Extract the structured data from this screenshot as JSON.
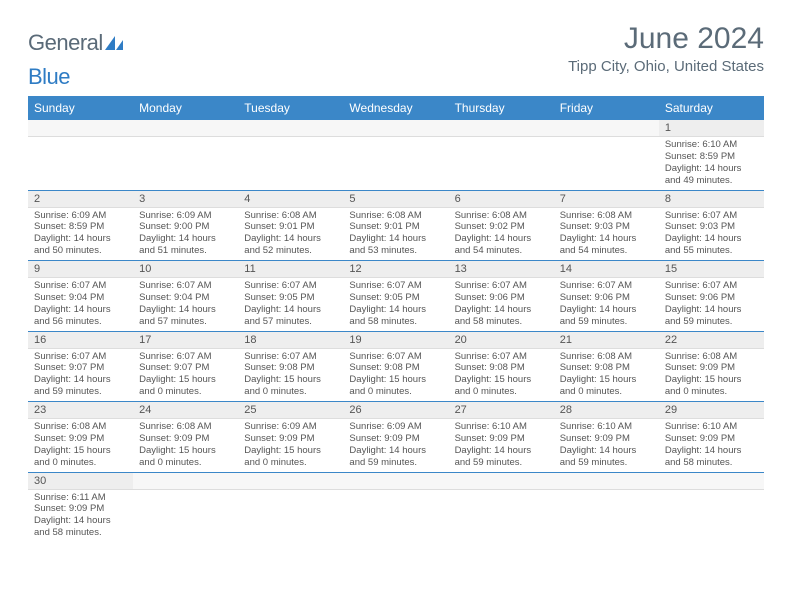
{
  "brand": {
    "prefix": "General",
    "accent": "Blue"
  },
  "title": "June 2024",
  "location": "Tipp City, Ohio, United States",
  "colors": {
    "header_bg": "#3b87c8",
    "header_text": "#ffffff",
    "daynum_bg": "#eeeeee",
    "border_accent": "#3b87c8",
    "text": "#555555",
    "title_color": "#5b6b78"
  },
  "weekdays": [
    "Sunday",
    "Monday",
    "Tuesday",
    "Wednesday",
    "Thursday",
    "Friday",
    "Saturday"
  ],
  "weeks": [
    [
      null,
      null,
      null,
      null,
      null,
      null,
      {
        "n": "1",
        "sr": "Sunrise: 6:10 AM",
        "ss": "Sunset: 8:59 PM",
        "d1": "Daylight: 14 hours",
        "d2": "and 49 minutes."
      }
    ],
    [
      {
        "n": "2",
        "sr": "Sunrise: 6:09 AM",
        "ss": "Sunset: 8:59 PM",
        "d1": "Daylight: 14 hours",
        "d2": "and 50 minutes."
      },
      {
        "n": "3",
        "sr": "Sunrise: 6:09 AM",
        "ss": "Sunset: 9:00 PM",
        "d1": "Daylight: 14 hours",
        "d2": "and 51 minutes."
      },
      {
        "n": "4",
        "sr": "Sunrise: 6:08 AM",
        "ss": "Sunset: 9:01 PM",
        "d1": "Daylight: 14 hours",
        "d2": "and 52 minutes."
      },
      {
        "n": "5",
        "sr": "Sunrise: 6:08 AM",
        "ss": "Sunset: 9:01 PM",
        "d1": "Daylight: 14 hours",
        "d2": "and 53 minutes."
      },
      {
        "n": "6",
        "sr": "Sunrise: 6:08 AM",
        "ss": "Sunset: 9:02 PM",
        "d1": "Daylight: 14 hours",
        "d2": "and 54 minutes."
      },
      {
        "n": "7",
        "sr": "Sunrise: 6:08 AM",
        "ss": "Sunset: 9:03 PM",
        "d1": "Daylight: 14 hours",
        "d2": "and 54 minutes."
      },
      {
        "n": "8",
        "sr": "Sunrise: 6:07 AM",
        "ss": "Sunset: 9:03 PM",
        "d1": "Daylight: 14 hours",
        "d2": "and 55 minutes."
      }
    ],
    [
      {
        "n": "9",
        "sr": "Sunrise: 6:07 AM",
        "ss": "Sunset: 9:04 PM",
        "d1": "Daylight: 14 hours",
        "d2": "and 56 minutes."
      },
      {
        "n": "10",
        "sr": "Sunrise: 6:07 AM",
        "ss": "Sunset: 9:04 PM",
        "d1": "Daylight: 14 hours",
        "d2": "and 57 minutes."
      },
      {
        "n": "11",
        "sr": "Sunrise: 6:07 AM",
        "ss": "Sunset: 9:05 PM",
        "d1": "Daylight: 14 hours",
        "d2": "and 57 minutes."
      },
      {
        "n": "12",
        "sr": "Sunrise: 6:07 AM",
        "ss": "Sunset: 9:05 PM",
        "d1": "Daylight: 14 hours",
        "d2": "and 58 minutes."
      },
      {
        "n": "13",
        "sr": "Sunrise: 6:07 AM",
        "ss": "Sunset: 9:06 PM",
        "d1": "Daylight: 14 hours",
        "d2": "and 58 minutes."
      },
      {
        "n": "14",
        "sr": "Sunrise: 6:07 AM",
        "ss": "Sunset: 9:06 PM",
        "d1": "Daylight: 14 hours",
        "d2": "and 59 minutes."
      },
      {
        "n": "15",
        "sr": "Sunrise: 6:07 AM",
        "ss": "Sunset: 9:06 PM",
        "d1": "Daylight: 14 hours",
        "d2": "and 59 minutes."
      }
    ],
    [
      {
        "n": "16",
        "sr": "Sunrise: 6:07 AM",
        "ss": "Sunset: 9:07 PM",
        "d1": "Daylight: 14 hours",
        "d2": "and 59 minutes."
      },
      {
        "n": "17",
        "sr": "Sunrise: 6:07 AM",
        "ss": "Sunset: 9:07 PM",
        "d1": "Daylight: 15 hours",
        "d2": "and 0 minutes."
      },
      {
        "n": "18",
        "sr": "Sunrise: 6:07 AM",
        "ss": "Sunset: 9:08 PM",
        "d1": "Daylight: 15 hours",
        "d2": "and 0 minutes."
      },
      {
        "n": "19",
        "sr": "Sunrise: 6:07 AM",
        "ss": "Sunset: 9:08 PM",
        "d1": "Daylight: 15 hours",
        "d2": "and 0 minutes."
      },
      {
        "n": "20",
        "sr": "Sunrise: 6:07 AM",
        "ss": "Sunset: 9:08 PM",
        "d1": "Daylight: 15 hours",
        "d2": "and 0 minutes."
      },
      {
        "n": "21",
        "sr": "Sunrise: 6:08 AM",
        "ss": "Sunset: 9:08 PM",
        "d1": "Daylight: 15 hours",
        "d2": "and 0 minutes."
      },
      {
        "n": "22",
        "sr": "Sunrise: 6:08 AM",
        "ss": "Sunset: 9:09 PM",
        "d1": "Daylight: 15 hours",
        "d2": "and 0 minutes."
      }
    ],
    [
      {
        "n": "23",
        "sr": "Sunrise: 6:08 AM",
        "ss": "Sunset: 9:09 PM",
        "d1": "Daylight: 15 hours",
        "d2": "and 0 minutes."
      },
      {
        "n": "24",
        "sr": "Sunrise: 6:08 AM",
        "ss": "Sunset: 9:09 PM",
        "d1": "Daylight: 15 hours",
        "d2": "and 0 minutes."
      },
      {
        "n": "25",
        "sr": "Sunrise: 6:09 AM",
        "ss": "Sunset: 9:09 PM",
        "d1": "Daylight: 15 hours",
        "d2": "and 0 minutes."
      },
      {
        "n": "26",
        "sr": "Sunrise: 6:09 AM",
        "ss": "Sunset: 9:09 PM",
        "d1": "Daylight: 14 hours",
        "d2": "and 59 minutes."
      },
      {
        "n": "27",
        "sr": "Sunrise: 6:10 AM",
        "ss": "Sunset: 9:09 PM",
        "d1": "Daylight: 14 hours",
        "d2": "and 59 minutes."
      },
      {
        "n": "28",
        "sr": "Sunrise: 6:10 AM",
        "ss": "Sunset: 9:09 PM",
        "d1": "Daylight: 14 hours",
        "d2": "and 59 minutes."
      },
      {
        "n": "29",
        "sr": "Sunrise: 6:10 AM",
        "ss": "Sunset: 9:09 PM",
        "d1": "Daylight: 14 hours",
        "d2": "and 58 minutes."
      }
    ],
    [
      {
        "n": "30",
        "sr": "Sunrise: 6:11 AM",
        "ss": "Sunset: 9:09 PM",
        "d1": "Daylight: 14 hours",
        "d2": "and 58 minutes."
      },
      null,
      null,
      null,
      null,
      null,
      null
    ]
  ]
}
